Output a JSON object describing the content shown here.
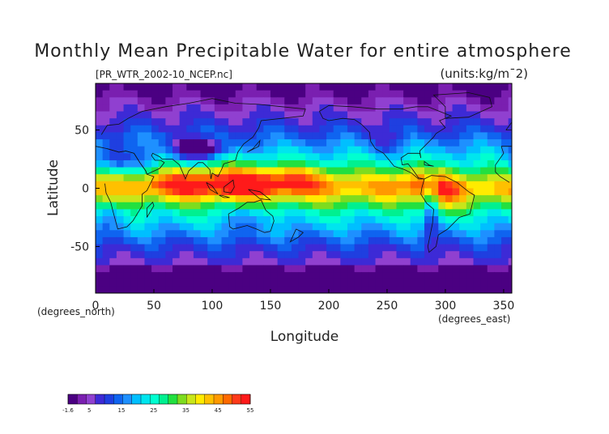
{
  "chart_data": {
    "type": "heatmap",
    "title": "Monthly Mean Precipitable Water for entire atmosphere",
    "subtitle_left": "[PR_WTR_2002-10_NCEP.nc]",
    "subtitle_right": "(units:kg/m¯2)",
    "xlabel": "Longitude",
    "ylabel": "Latitude",
    "x_unit_label": "(degrees_east)",
    "y_unit_label": "(degrees_north)",
    "xlim": [
      0,
      357
    ],
    "ylim": [
      -90,
      90
    ],
    "x_ticks": [
      "0",
      "50",
      "100",
      "150",
      "200",
      "250",
      "300",
      "350"
    ],
    "y_ticks": [
      "50",
      "0",
      "-50"
    ],
    "colorbar": {
      "ticks": [
        "-1.6",
        "5",
        "15",
        "25",
        "35",
        "45",
        "55"
      ],
      "range": [
        -1.6,
        55
      ],
      "colors": [
        "#4b0082",
        "#7a1fb0",
        "#9040d0",
        "#3d2ad6",
        "#1f3fe0",
        "#0f64f0",
        "#1e90ff",
        "#00bfff",
        "#00e5ee",
        "#00ffd0",
        "#00f090",
        "#22e040",
        "#7ddc1f",
        "#c8e61a",
        "#ffeb00",
        "#ffc000",
        "#ff9900",
        "#ff6a00",
        "#ff3a1a",
        "#ff1a1a"
      ]
    },
    "pattern": "Zonal bands: ~-1.6 near poles, 10-20 at mid-latitudes, 40-55 in the tropical belt (Indian Ocean, Maritime Continent, western Pacific, Amazon); low values over Himalaya/Tibet, Andes, Sahara and Antarctica."
  }
}
